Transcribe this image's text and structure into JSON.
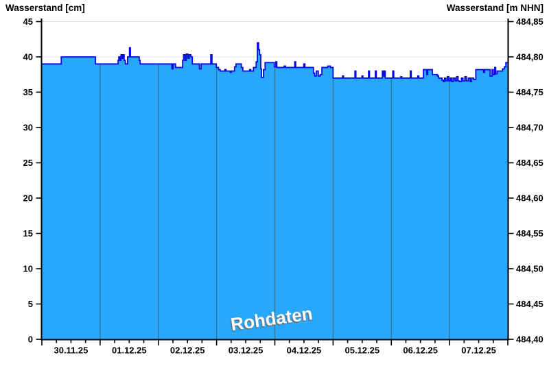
{
  "chart_data": {
    "type": "area",
    "title_left": "Wasserstand [cm]",
    "title_right": "Wasserstand [m NHN]",
    "watermark": "Rohdaten",
    "x_tick_labels": [
      "30.11.25",
      "01.12.25",
      "02.12.25",
      "03.12.25",
      "04.12.25",
      "05.12.25",
      "06.12.25",
      "07.12.25"
    ],
    "x_axis": {
      "days": 8,
      "hours_total": 192,
      "minor_tick_hours": 6
    },
    "y_left": {
      "label": "Wasserstand [cm]",
      "min": 0,
      "max": 45,
      "step": 5,
      "ticks": [
        0,
        5,
        10,
        15,
        20,
        25,
        30,
        35,
        40,
        45
      ]
    },
    "y_right": {
      "label": "Wasserstand [m NHN]",
      "min": 484.4,
      "max": 484.85,
      "step": 0.05,
      "tick_labels": [
        "484,40",
        "484,45",
        "484,50",
        "484,55",
        "484,60",
        "484,65",
        "484,70",
        "484,75",
        "484,80",
        "484,85"
      ]
    },
    "grid": {
      "horizontal": true,
      "vertical_day_lines": true
    },
    "colors": {
      "fill": "#29a7fa",
      "line": "#0a0ae0",
      "grid_h": "#e0e0e0",
      "grid_v_on_fill": "#2e6f94",
      "axis": "#000000",
      "watermark_fill": "#ffffff",
      "watermark_shadow": "#6e6e6e"
    },
    "series": [
      {
        "name": "Wasserstand Rohdaten",
        "unit": "cm",
        "interpolation": "step-after",
        "points_t_hours_value_cm": [
          [
            0,
            39
          ],
          [
            8,
            40
          ],
          [
            22.1,
            39
          ],
          [
            31.4,
            39.5
          ],
          [
            31.7,
            40
          ],
          [
            32.2,
            39.5
          ],
          [
            32.6,
            40.3
          ],
          [
            33,
            39.8
          ],
          [
            33.4,
            40.3
          ],
          [
            33.9,
            39.5
          ],
          [
            34.4,
            39
          ],
          [
            35.3,
            40
          ],
          [
            36.1,
            41.3
          ],
          [
            36.5,
            40
          ],
          [
            40.1,
            39.5
          ],
          [
            40.5,
            39
          ],
          [
            53.6,
            38.3
          ],
          [
            54.1,
            39
          ],
          [
            55.1,
            38.5
          ],
          [
            58,
            39.5
          ],
          [
            58.4,
            40.3
          ],
          [
            59,
            39.5
          ],
          [
            59.5,
            40.4
          ],
          [
            60.2,
            39.8
          ],
          [
            60.7,
            40.3
          ],
          [
            61.4,
            40
          ],
          [
            62,
            39
          ],
          [
            64.9,
            38.3
          ],
          [
            65.6,
            39
          ],
          [
            69.6,
            40.3
          ],
          [
            70.1,
            39
          ],
          [
            71.9,
            38.5
          ],
          [
            72.8,
            38.2
          ],
          [
            73.5,
            38
          ],
          [
            75.4,
            38.2
          ],
          [
            75.9,
            38
          ],
          [
            77.6,
            37.8
          ],
          [
            78.1,
            38
          ],
          [
            79.4,
            38.6
          ],
          [
            80,
            39
          ],
          [
            82.2,
            38.5
          ],
          [
            82.8,
            38
          ],
          [
            85.6,
            38.2
          ],
          [
            86.1,
            38
          ],
          [
            87.2,
            38.5
          ],
          [
            88.3,
            39.3
          ],
          [
            88.8,
            42
          ],
          [
            89.3,
            41
          ],
          [
            89.7,
            40.3
          ],
          [
            90.2,
            38.3
          ],
          [
            90.5,
            37.1
          ],
          [
            91.3,
            38.2
          ],
          [
            92,
            39.2
          ],
          [
            95.8,
            38.6
          ],
          [
            96.4,
            39.3
          ],
          [
            96.8,
            38.5
          ],
          [
            99.8,
            38.7
          ],
          [
            100.4,
            38.5
          ],
          [
            104.2,
            39.3
          ],
          [
            104.6,
            38.5
          ],
          [
            107.9,
            39
          ],
          [
            108.4,
            38.5
          ],
          [
            111.9,
            37.7
          ],
          [
            112.4,
            37.3
          ],
          [
            113.1,
            38
          ],
          [
            113.9,
            37.3
          ],
          [
            114.7,
            37.5
          ],
          [
            115.4,
            38.5
          ],
          [
            117.8,
            38.7
          ],
          [
            118.9,
            38.5
          ],
          [
            120,
            37
          ],
          [
            123.9,
            37.3
          ],
          [
            124.3,
            37
          ],
          [
            129,
            38
          ],
          [
            129.4,
            37
          ],
          [
            131.9,
            37.3
          ],
          [
            132.3,
            37
          ],
          [
            134.6,
            38
          ],
          [
            135,
            37
          ],
          [
            137.4,
            38
          ],
          [
            137.8,
            37
          ],
          [
            140.3,
            38
          ],
          [
            140.7,
            37.3
          ],
          [
            141.1,
            38
          ],
          [
            141.5,
            37
          ],
          [
            144.6,
            38
          ],
          [
            145,
            37
          ],
          [
            147.9,
            37.2
          ],
          [
            148.3,
            37
          ],
          [
            151.8,
            38
          ],
          [
            152.2,
            37
          ],
          [
            154.9,
            37.3
          ],
          [
            155.3,
            37
          ],
          [
            157.2,
            38.2
          ],
          [
            158.6,
            37.5
          ],
          [
            159,
            38.2
          ],
          [
            160.9,
            37.5
          ],
          [
            163,
            37.3
          ],
          [
            163.5,
            37
          ],
          [
            164.9,
            36.7
          ],
          [
            165.4,
            36.5
          ],
          [
            165.9,
            37
          ],
          [
            166.5,
            36.6
          ],
          [
            167.1,
            37.2
          ],
          [
            167.7,
            36.6
          ],
          [
            168.3,
            37
          ],
          [
            168.9,
            36.5
          ],
          [
            169.5,
            37
          ],
          [
            170.3,
            36.6
          ],
          [
            170.9,
            37.2
          ],
          [
            171.5,
            36.6
          ],
          [
            172.1,
            36.5
          ],
          [
            172.9,
            37
          ],
          [
            173.5,
            36.6
          ],
          [
            174.3,
            37.2
          ],
          [
            174.9,
            36.6
          ],
          [
            175.7,
            37
          ],
          [
            176.5,
            36.5
          ],
          [
            177.1,
            37
          ],
          [
            177.9,
            36.8
          ],
          [
            178.8,
            38.2
          ],
          [
            182,
            37.8
          ],
          [
            182.4,
            38.2
          ],
          [
            184.7,
            37.3
          ],
          [
            185.5,
            38.2
          ],
          [
            186,
            37.5
          ],
          [
            186.6,
            38.5
          ],
          [
            187,
            37.6
          ],
          [
            187.6,
            38
          ],
          [
            189.8,
            38.3
          ],
          [
            190.6,
            38.6
          ],
          [
            191.2,
            39.2
          ]
        ]
      }
    ]
  }
}
